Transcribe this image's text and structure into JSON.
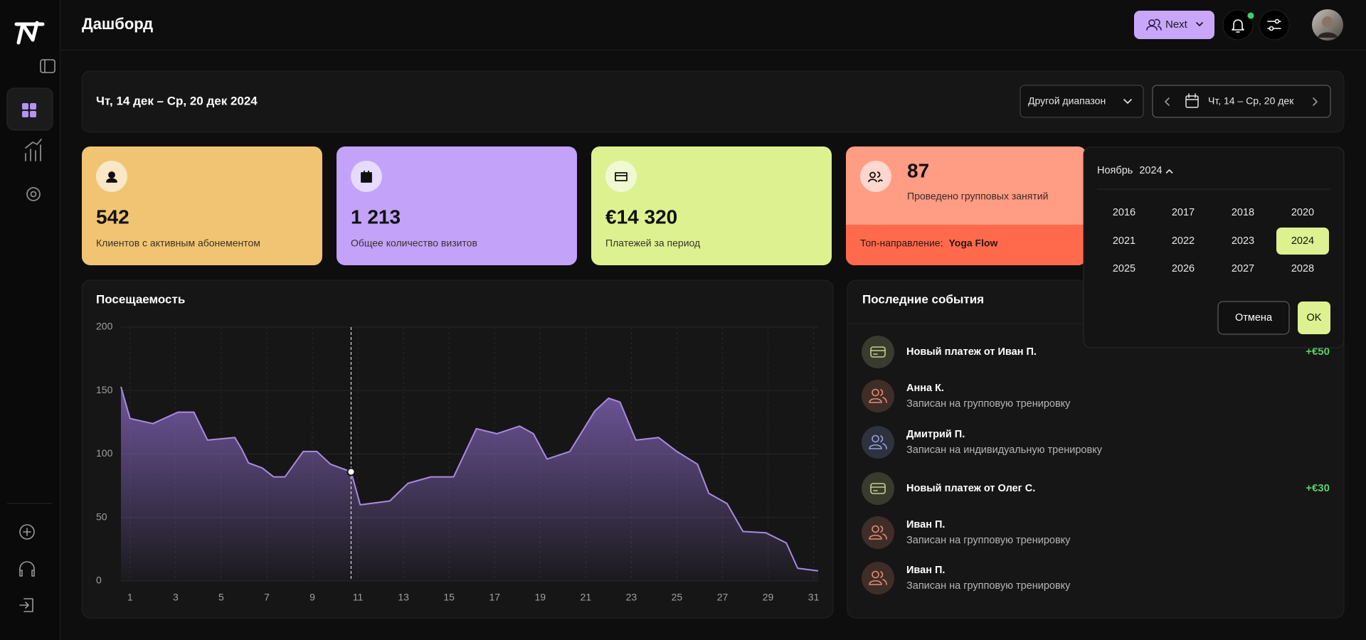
{
  "header": {
    "title": "Дашборд",
    "button": "Next"
  },
  "period": {
    "title": "Чт, 14 дек – Ср, 20 дек 2024",
    "range_select": "Другой диапазон",
    "range_value": "Чт, 14 – Ср, 20 дек"
  },
  "stats": [
    {
      "value": "542",
      "label": "Клиентов с активным абонементом",
      "color": "#f0c472"
    },
    {
      "value": "1 213",
      "label": "Общее количество визитов",
      "color": "#c3a2fa"
    },
    {
      "value": "€14 320",
      "label": "Платежей за период",
      "color": "#ddf190"
    },
    {
      "value": "87",
      "label": "Проведено групповых занятий",
      "color": "#ff9c84",
      "top_label": "Топ-направление:",
      "top_value": "Yoga Flow",
      "top_color": "#ff6a4d"
    }
  ],
  "events": {
    "title": "Последние события",
    "items": [
      {
        "title": "Новый платеж от Иван П.",
        "amount": "+€50",
        "color": "#c5d08a"
      },
      {
        "title": "Анна К.",
        "subtitle": "Записан на групповую тренировку",
        "color": "#e58d72"
      },
      {
        "title": "Дмитрий П.",
        "subtitle": "Записан на индивидуальную тренировку",
        "color": "#93a3e2"
      },
      {
        "title": "Новый платеж от Олег С.",
        "amount": "+€30",
        "color": "#c5d08a"
      },
      {
        "title": "Иван П.",
        "subtitle": "Записан на групповую тренировку",
        "color": "#e58d72"
      },
      {
        "title": "Иван П.",
        "subtitle": "Записан на групповую тренировку",
        "color": "#e58d72"
      }
    ]
  },
  "year_picker": {
    "month": "Ноябрь",
    "year": "2024",
    "years": [
      "2016",
      "2017",
      "2018",
      "2020",
      "2021",
      "2022",
      "2023",
      "2024",
      "2025",
      "2026",
      "2027",
      "2028"
    ],
    "cancel": "Отмена",
    "ok": "OK"
  },
  "chart_data": {
    "type": "area",
    "title": "Посещаемость",
    "color": "#a98ae0",
    "x": [
      0.6,
      1,
      2,
      3.1,
      3.8,
      4.4,
      5.6,
      5.9,
      6.2,
      6.8,
      7.3,
      7.8,
      8.6,
      9.2,
      9.8,
      10.7,
      11.1,
      12.4,
      13.2,
      14.2,
      15.2,
      16.2,
      17.1,
      18.1,
      18.7,
      19.3,
      20.3,
      21.4,
      22,
      22.5,
      23.2,
      24.2,
      25,
      25.9,
      26.4,
      27.2,
      27.9,
      28.9,
      29.8,
      30.3,
      31.2
    ],
    "values": [
      153,
      128,
      124,
      133,
      133,
      111,
      113,
      104,
      93,
      89,
      82,
      82,
      102,
      102,
      92,
      86,
      60,
      63,
      77,
      82,
      82,
      120,
      116,
      122,
      116,
      96,
      102,
      134,
      144,
      141,
      111,
      113,
      102,
      92,
      69,
      61,
      39,
      38,
      30,
      10,
      8
    ],
    "xlim": [
      0.6,
      31.2
    ],
    "xticks": [
      1,
      3,
      5,
      7,
      9,
      11,
      13,
      15,
      17,
      19,
      21,
      23,
      25,
      27,
      29,
      31
    ],
    "ylim": [
      0,
      200
    ],
    "yticks": [
      0,
      50,
      100,
      150,
      200
    ],
    "grid": true,
    "highlight_index": 15
  }
}
